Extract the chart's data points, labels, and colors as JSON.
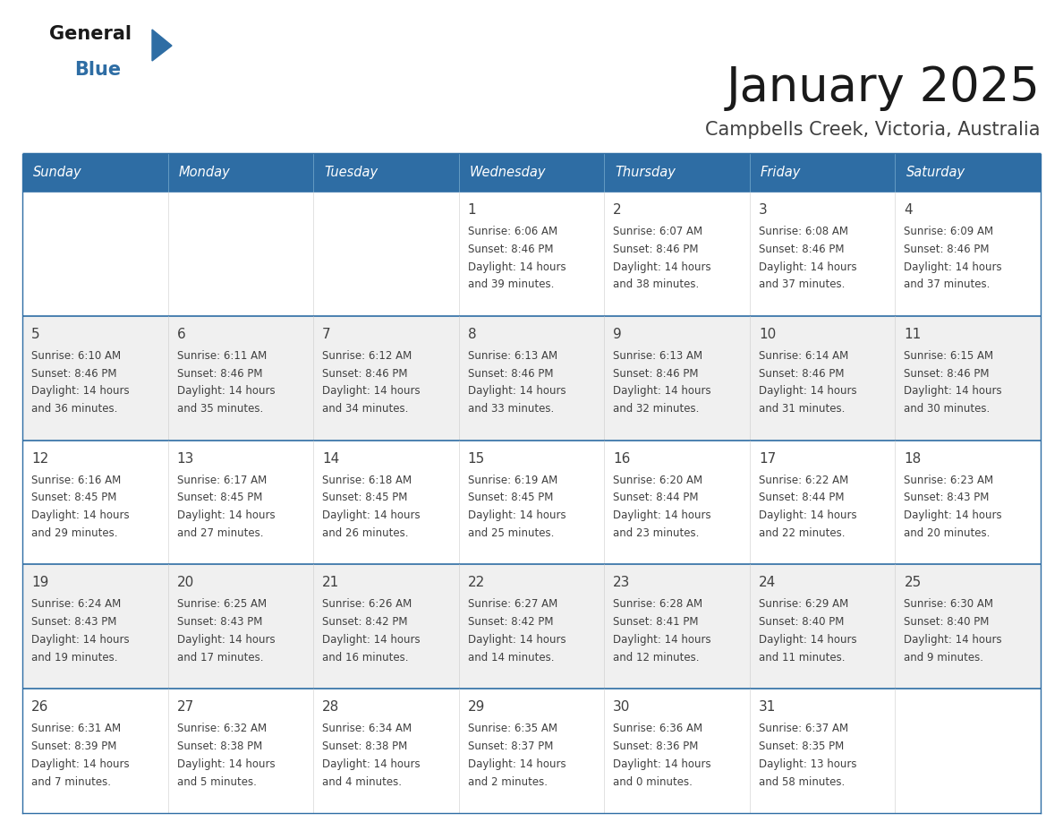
{
  "title": "January 2025",
  "subtitle": "Campbells Creek, Victoria, Australia",
  "days_of_week": [
    "Sunday",
    "Monday",
    "Tuesday",
    "Wednesday",
    "Thursday",
    "Friday",
    "Saturday"
  ],
  "header_bg": "#2E6DA4",
  "header_text": "#FFFFFF",
  "row_bg_odd": "#FFFFFF",
  "row_bg_even": "#F0F0F0",
  "border_color": "#2E6DA4",
  "text_color": "#404040",
  "calendar_data": [
    [
      null,
      null,
      null,
      {
        "day": 1,
        "sunrise": "6:06 AM",
        "sunset": "8:46 PM",
        "daylight": "14 hours",
        "daylight2": "and 39 minutes."
      },
      {
        "day": 2,
        "sunrise": "6:07 AM",
        "sunset": "8:46 PM",
        "daylight": "14 hours",
        "daylight2": "and 38 minutes."
      },
      {
        "day": 3,
        "sunrise": "6:08 AM",
        "sunset": "8:46 PM",
        "daylight": "14 hours",
        "daylight2": "and 37 minutes."
      },
      {
        "day": 4,
        "sunrise": "6:09 AM",
        "sunset": "8:46 PM",
        "daylight": "14 hours",
        "daylight2": "and 37 minutes."
      }
    ],
    [
      {
        "day": 5,
        "sunrise": "6:10 AM",
        "sunset": "8:46 PM",
        "daylight": "14 hours",
        "daylight2": "and 36 minutes."
      },
      {
        "day": 6,
        "sunrise": "6:11 AM",
        "sunset": "8:46 PM",
        "daylight": "14 hours",
        "daylight2": "and 35 minutes."
      },
      {
        "day": 7,
        "sunrise": "6:12 AM",
        "sunset": "8:46 PM",
        "daylight": "14 hours",
        "daylight2": "and 34 minutes."
      },
      {
        "day": 8,
        "sunrise": "6:13 AM",
        "sunset": "8:46 PM",
        "daylight": "14 hours",
        "daylight2": "and 33 minutes."
      },
      {
        "day": 9,
        "sunrise": "6:13 AM",
        "sunset": "8:46 PM",
        "daylight": "14 hours",
        "daylight2": "and 32 minutes."
      },
      {
        "day": 10,
        "sunrise": "6:14 AM",
        "sunset": "8:46 PM",
        "daylight": "14 hours",
        "daylight2": "and 31 minutes."
      },
      {
        "day": 11,
        "sunrise": "6:15 AM",
        "sunset": "8:46 PM",
        "daylight": "14 hours",
        "daylight2": "and 30 minutes."
      }
    ],
    [
      {
        "day": 12,
        "sunrise": "6:16 AM",
        "sunset": "8:45 PM",
        "daylight": "14 hours",
        "daylight2": "and 29 minutes."
      },
      {
        "day": 13,
        "sunrise": "6:17 AM",
        "sunset": "8:45 PM",
        "daylight": "14 hours",
        "daylight2": "and 27 minutes."
      },
      {
        "day": 14,
        "sunrise": "6:18 AM",
        "sunset": "8:45 PM",
        "daylight": "14 hours",
        "daylight2": "and 26 minutes."
      },
      {
        "day": 15,
        "sunrise": "6:19 AM",
        "sunset": "8:45 PM",
        "daylight": "14 hours",
        "daylight2": "and 25 minutes."
      },
      {
        "day": 16,
        "sunrise": "6:20 AM",
        "sunset": "8:44 PM",
        "daylight": "14 hours",
        "daylight2": "and 23 minutes."
      },
      {
        "day": 17,
        "sunrise": "6:22 AM",
        "sunset": "8:44 PM",
        "daylight": "14 hours",
        "daylight2": "and 22 minutes."
      },
      {
        "day": 18,
        "sunrise": "6:23 AM",
        "sunset": "8:43 PM",
        "daylight": "14 hours",
        "daylight2": "and 20 minutes."
      }
    ],
    [
      {
        "day": 19,
        "sunrise": "6:24 AM",
        "sunset": "8:43 PM",
        "daylight": "14 hours",
        "daylight2": "and 19 minutes."
      },
      {
        "day": 20,
        "sunrise": "6:25 AM",
        "sunset": "8:43 PM",
        "daylight": "14 hours",
        "daylight2": "and 17 minutes."
      },
      {
        "day": 21,
        "sunrise": "6:26 AM",
        "sunset": "8:42 PM",
        "daylight": "14 hours",
        "daylight2": "and 16 minutes."
      },
      {
        "day": 22,
        "sunrise": "6:27 AM",
        "sunset": "8:42 PM",
        "daylight": "14 hours",
        "daylight2": "and 14 minutes."
      },
      {
        "day": 23,
        "sunrise": "6:28 AM",
        "sunset": "8:41 PM",
        "daylight": "14 hours",
        "daylight2": "and 12 minutes."
      },
      {
        "day": 24,
        "sunrise": "6:29 AM",
        "sunset": "8:40 PM",
        "daylight": "14 hours",
        "daylight2": "and 11 minutes."
      },
      {
        "day": 25,
        "sunrise": "6:30 AM",
        "sunset": "8:40 PM",
        "daylight": "14 hours",
        "daylight2": "and 9 minutes."
      }
    ],
    [
      {
        "day": 26,
        "sunrise": "6:31 AM",
        "sunset": "8:39 PM",
        "daylight": "14 hours",
        "daylight2": "and 7 minutes."
      },
      {
        "day": 27,
        "sunrise": "6:32 AM",
        "sunset": "8:38 PM",
        "daylight": "14 hours",
        "daylight2": "and 5 minutes."
      },
      {
        "day": 28,
        "sunrise": "6:34 AM",
        "sunset": "8:38 PM",
        "daylight": "14 hours",
        "daylight2": "and 4 minutes."
      },
      {
        "day": 29,
        "sunrise": "6:35 AM",
        "sunset": "8:37 PM",
        "daylight": "14 hours",
        "daylight2": "and 2 minutes."
      },
      {
        "day": 30,
        "sunrise": "6:36 AM",
        "sunset": "8:36 PM",
        "daylight": "14 hours",
        "daylight2": "and 0 minutes."
      },
      {
        "day": 31,
        "sunrise": "6:37 AM",
        "sunset": "8:35 PM",
        "daylight": "13 hours",
        "daylight2": "and 58 minutes."
      },
      null
    ]
  ],
  "logo_color_general": "#1a1a1a",
  "logo_color_blue": "#2E6DA4"
}
